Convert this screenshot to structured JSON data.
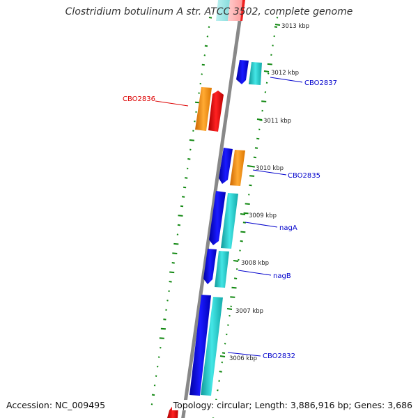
{
  "title": "Clostridium botulinum A str. ATCC 3502, complete genome",
  "footer": {
    "accession": "Accession: NC_009495",
    "topology": "Topology: circular; Length: 3,886,916 bp; Genes: 3,686"
  },
  "ticks": [
    "3013 kbp",
    "3012 kbp",
    "3011 kbp",
    "3010 kbp",
    "3009 kbp",
    "3008 kbp",
    "3007 kbp",
    "3006 kbp"
  ],
  "gene_labels": [
    {
      "text": "CBO2837",
      "color": "#0000cc"
    },
    {
      "text": "CBO2836",
      "color": "#dd0000"
    },
    {
      "text": "CBO2835",
      "color": "#0000cc"
    },
    {
      "text": "nagA",
      "color": "#0000cc"
    },
    {
      "text": "nagB",
      "color": "#0000cc"
    },
    {
      "text": "CBO2832",
      "color": "#0000cc"
    }
  ],
  "colors": {
    "backbone": "#888888",
    "gc_dots": "#118811",
    "cds_blue": "#0000ee",
    "cds_cyan": "#22cccc",
    "cds_orange": "#ff9900",
    "cds_red": "#ee0000",
    "tick": "#118811"
  }
}
